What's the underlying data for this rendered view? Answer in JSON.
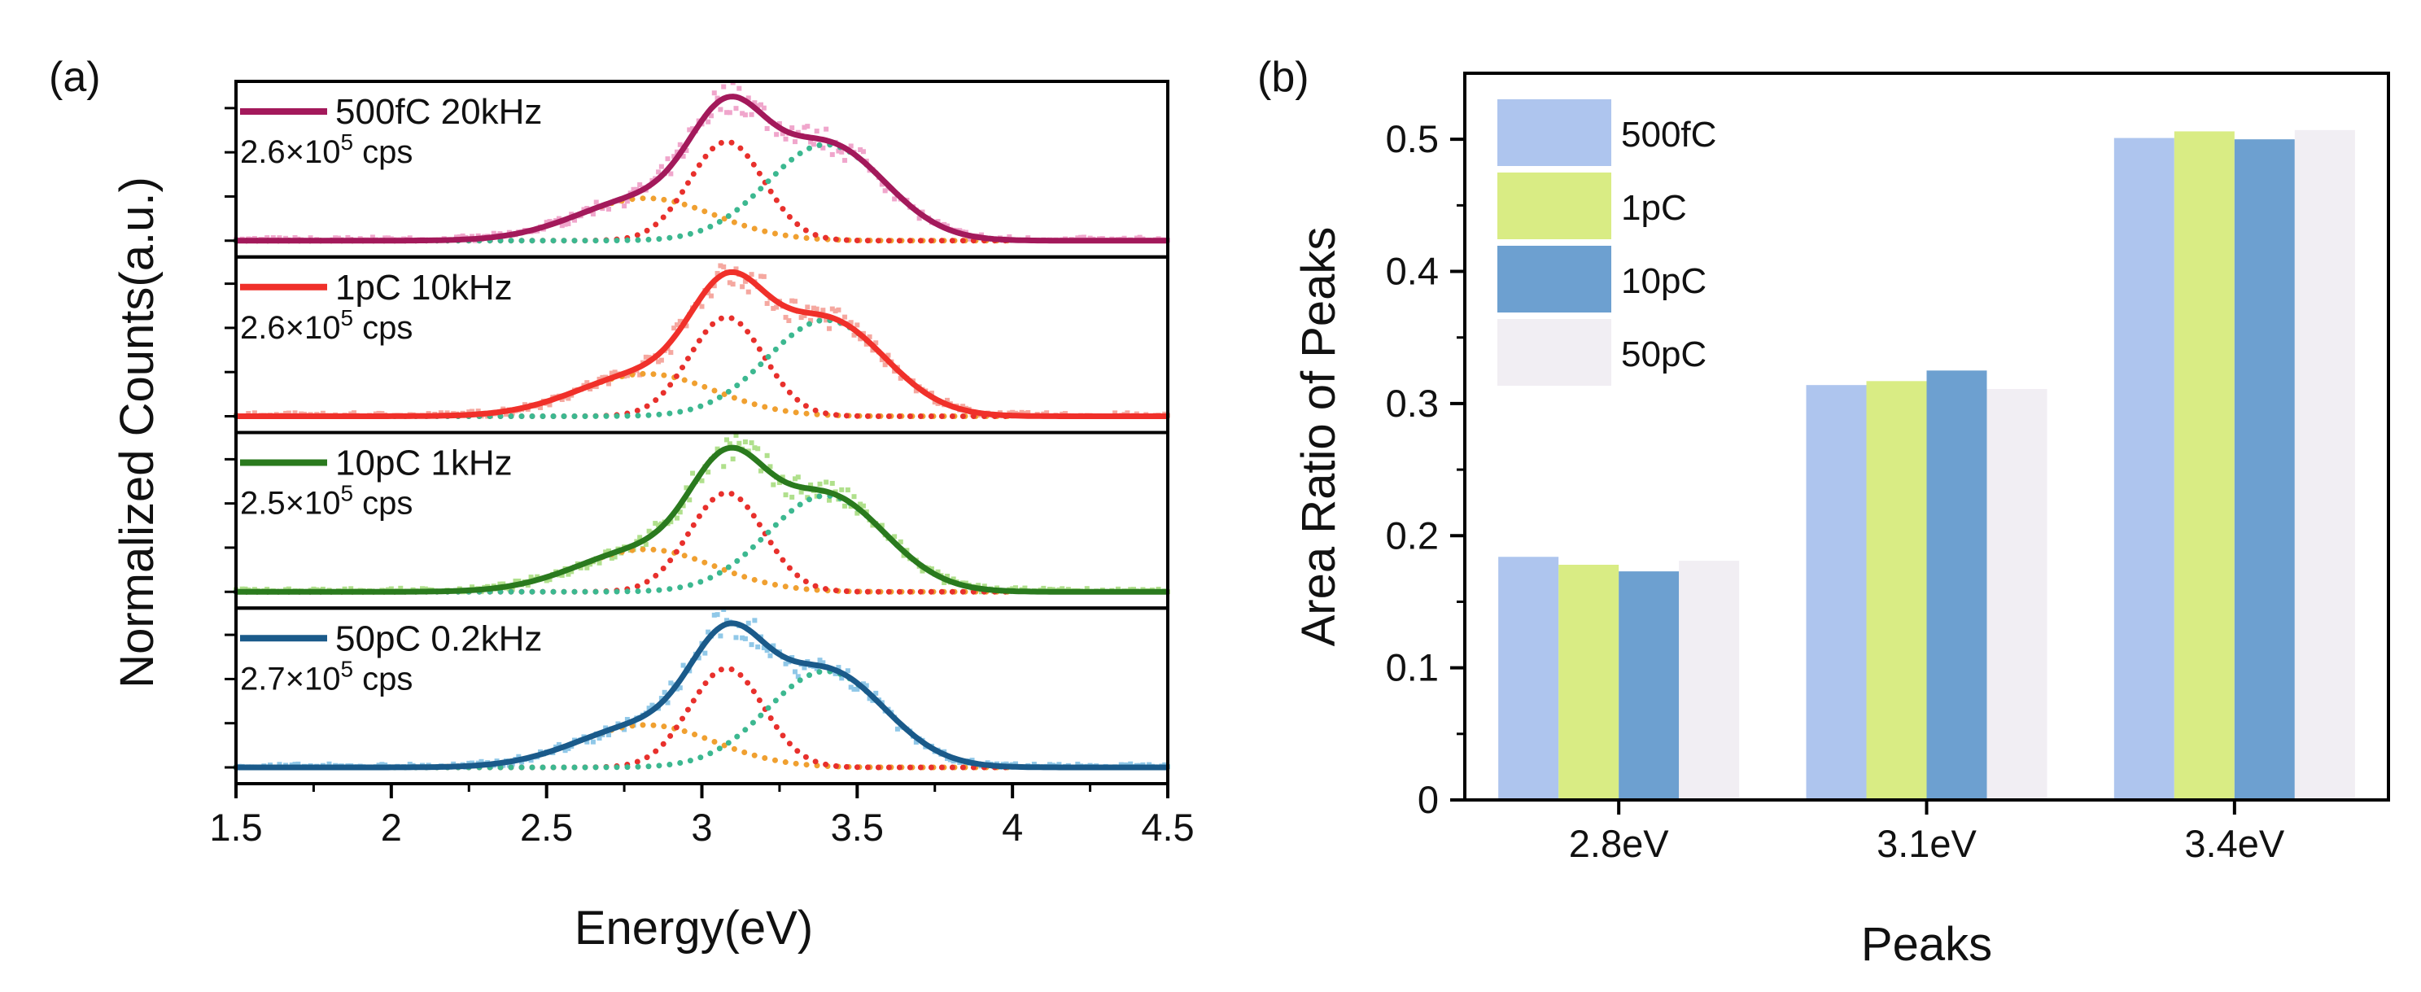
{
  "chart_data": [
    {
      "type": "line",
      "panel_label": "(a)",
      "xlabel": "Energy(eV)",
      "ylabel": "Normalized Counts(a.u.)",
      "xlim": [
        1.5,
        4.5
      ],
      "xticks": [
        "1.5",
        "2",
        "2.5",
        "3",
        "3.5",
        "4",
        "4.5"
      ],
      "fit_components_eV": [
        {
          "name": "2.8eV",
          "center": 2.82,
          "color": "#f0a030"
        },
        {
          "name": "3.1eV",
          "center": 3.08,
          "color": "#e8302c"
        },
        {
          "name": "3.4eV",
          "center": 3.4,
          "color": "#3cb890"
        }
      ],
      "series": [
        {
          "name": "500fC 20kHz",
          "legend": "500fC 20kHz",
          "count_rate": "2.6×10",
          "exponent": "5",
          "unit": " cps",
          "color": "#a3195b",
          "scatter_color": "#f0a6cc"
        },
        {
          "name": "1pC 10kHz",
          "legend": "1pC 10kHz",
          "count_rate": "2.6×10",
          "exponent": "5",
          "unit": " cps",
          "color": "#f0302a",
          "scatter_color": "#f5a8a0"
        },
        {
          "name": "10pC 1kHz",
          "legend": "10pC 1kHz",
          "count_rate": "2.5×10",
          "exponent": "5",
          "unit": " cps",
          "color": "#2a7a1e",
          "scatter_color": "#b0e08c"
        },
        {
          "name": "50pC 0.2kHz",
          "legend": "50pC 0.2kHz",
          "count_rate": "2.7×10",
          "exponent": "5",
          "unit": " cps",
          "color": "#1a5a8a",
          "scatter_color": "#90c8e8"
        }
      ]
    },
    {
      "type": "bar",
      "panel_label": "(b)",
      "xlabel": "Peaks",
      "ylabel": "Area Ratio of Peaks",
      "ylim": [
        0,
        0.55
      ],
      "yticks": [
        "0",
        "0.1",
        "0.2",
        "0.3",
        "0.4",
        "0.5"
      ],
      "categories": [
        "2.8eV",
        "3.1eV",
        "3.4eV"
      ],
      "series": [
        {
          "name": "500fC",
          "values": [
            0.184,
            0.314,
            0.501
          ],
          "color": "#aec5ee"
        },
        {
          "name": "1pC",
          "values": [
            0.178,
            0.317,
            0.506
          ],
          "color": "#d9ec84"
        },
        {
          "name": "10pC",
          "values": [
            0.173,
            0.325,
            0.5
          ],
          "color": "#6da0d0"
        },
        {
          "name": "50pC",
          "values": [
            0.181,
            0.311,
            0.507
          ],
          "color": "#f1eef3"
        }
      ]
    }
  ]
}
